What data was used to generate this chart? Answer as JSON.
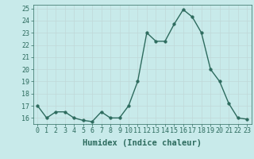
{
  "x": [
    0,
    1,
    2,
    3,
    4,
    5,
    6,
    7,
    8,
    9,
    10,
    11,
    12,
    13,
    14,
    15,
    16,
    17,
    18,
    19,
    20,
    21,
    22,
    23
  ],
  "y": [
    17,
    16,
    16.5,
    16.5,
    16,
    15.8,
    15.7,
    16.5,
    16,
    16,
    17,
    19,
    23,
    22.3,
    22.3,
    23.7,
    24.9,
    24.3,
    23,
    20,
    19,
    17.2,
    16,
    15.9
  ],
  "line_color": "#2d6b5e",
  "marker_color": "#2d6b5e",
  "bg_color": "#c8eaea",
  "grid_color": "#c0d8d8",
  "xlabel": "Humidex (Indice chaleur)",
  "ylim": [
    15.5,
    25.3
  ],
  "xlim": [
    -0.5,
    23.5
  ],
  "yticks": [
    16,
    17,
    18,
    19,
    20,
    21,
    22,
    23,
    24,
    25
  ],
  "xticks": [
    0,
    1,
    2,
    3,
    4,
    5,
    6,
    7,
    8,
    9,
    10,
    11,
    12,
    13,
    14,
    15,
    16,
    17,
    18,
    19,
    20,
    21,
    22,
    23
  ],
  "tick_label_fontsize": 6,
  "xlabel_fontsize": 7.5,
  "line_width": 1.0,
  "marker_size": 2.5
}
